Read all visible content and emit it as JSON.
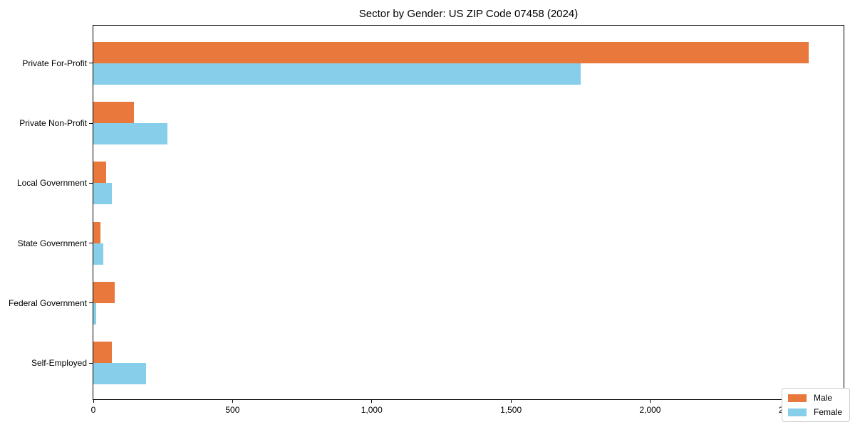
{
  "title": "Sector by Gender: US ZIP Code 07458 (2024)",
  "colors": {
    "male": "#e8783c",
    "female": "#87ceeb",
    "axis": "#000000",
    "legend_border": "#cccccc",
    "background": "#ffffff"
  },
  "chart_data": {
    "type": "bar",
    "orientation": "horizontal",
    "title": "Sector by Gender: US ZIP Code 07458 (2024)",
    "categories": [
      "Private For-Profit",
      "Private Non-Profit",
      "Local Government",
      "State Government",
      "Federal Government",
      "Self-Employed"
    ],
    "series": [
      {
        "name": "Male",
        "color": "#e8783c",
        "values": [
          2570,
          145,
          47,
          26,
          77,
          66
        ]
      },
      {
        "name": "Female",
        "color": "#87ceeb",
        "values": [
          1750,
          265,
          66,
          37,
          10,
          190
        ]
      }
    ],
    "xlabel": "",
    "ylabel": "",
    "xlim": [
      0,
      2700
    ],
    "x_ticks": [
      0,
      500,
      1000,
      1500,
      2000,
      2500
    ],
    "x_tick_labels": [
      "0",
      "500",
      "1,000",
      "1,500",
      "2,000",
      "2,500"
    ],
    "grid": false,
    "legend": {
      "position": "lower right",
      "entries": [
        "Male",
        "Female"
      ]
    }
  }
}
